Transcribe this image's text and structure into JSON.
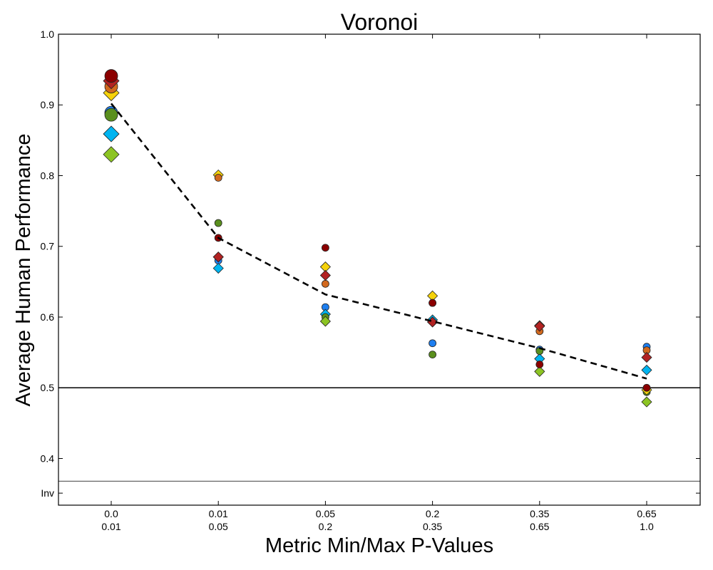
{
  "chart_data": {
    "type": "scatter",
    "title": "Voronoi",
    "xlabel": "Metric Min/Max P-Values",
    "ylabel": "Average Human Performance",
    "ylim": [
      0.334,
      1.0
    ],
    "grid": false,
    "categories": [
      {
        "top": "0.0",
        "bottom": "0.01"
      },
      {
        "top": "0.01",
        "bottom": "0.05"
      },
      {
        "top": "0.05",
        "bottom": "0.2"
      },
      {
        "top": "0.2",
        "bottom": "0.35"
      },
      {
        "top": "0.35",
        "bottom": "0.65"
      },
      {
        "top": "0.65",
        "bottom": "1.0"
      }
    ],
    "y_ticks": [
      {
        "value": 0.4,
        "label": "0.4"
      },
      {
        "value": 0.5,
        "label": "0.5"
      },
      {
        "value": 0.6,
        "label": "0.6"
      },
      {
        "value": 0.7,
        "label": "0.7"
      },
      {
        "value": 0.8,
        "label": "0.8"
      },
      {
        "value": 0.9,
        "label": "0.9"
      },
      {
        "value": 1.0,
        "label": "1.0"
      }
    ],
    "inv_tick": {
      "label": "Inv",
      "value": 0.351
    },
    "inv_separator": 0.368,
    "reference_line": 0.5,
    "trend_line": [
      0.902,
      0.712,
      0.632,
      0.594,
      0.556,
      0.513
    ],
    "series": [
      {
        "color": "#1e7ff0",
        "marker": "circle",
        "values": [
          0.889,
          0.68,
          0.614,
          0.563,
          0.554,
          0.558
        ]
      },
      {
        "color": "#00b4f0",
        "marker": "diamond",
        "values": [
          0.859,
          0.669,
          0.604,
          0.596,
          0.541,
          0.525
        ]
      },
      {
        "color": "#5a8f1e",
        "marker": "circle",
        "values": [
          0.886,
          0.733,
          0.6,
          0.547,
          0.552,
          0.494
        ]
      },
      {
        "color": "#8cc423",
        "marker": "diamond",
        "values": [
          0.83,
          0.685,
          0.594,
          0.593,
          0.523,
          0.48
        ]
      },
      {
        "color": "#f5d20a",
        "marker": "diamond",
        "values": [
          0.917,
          0.801,
          0.671,
          0.63,
          0.588,
          0.497
        ]
      },
      {
        "color": "#d2691e",
        "marker": "circle",
        "values": [
          0.926,
          0.797,
          0.647,
          0.62,
          0.58,
          0.553
        ]
      },
      {
        "color": "#b22222",
        "marker": "diamond",
        "values": [
          0.934,
          0.685,
          0.659,
          0.593,
          0.587,
          0.543
        ]
      },
      {
        "color": "#8b0000",
        "marker": "circle",
        "values": [
          0.941,
          0.712,
          0.698,
          0.62,
          0.533,
          0.5
        ]
      }
    ]
  }
}
